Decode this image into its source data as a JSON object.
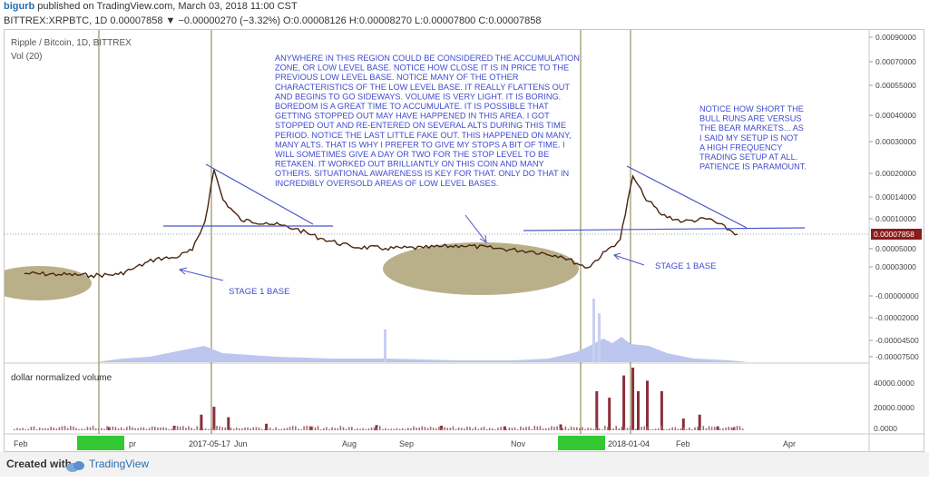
{
  "header": {
    "username": "bigurb",
    "published_text": "published on TradingView.com, March 03, 2018 11:00 CST",
    "ticker_line": "BITTREX:XRPBTC, 1D 0.00007858 ▼ −0.00000270 (−3.32%) O:0.00008126 H:0.00008270 L:0.00007800 C:0.00007858"
  },
  "chart_title": "Ripple / Bitcoin, 1D, BITTREX",
  "vol_label": "Vol (20)",
  "lower_pane_label": "dollar normalized volume",
  "annotations": {
    "accumulation": [
      "ANYWHERE IN THIS REGION COULD BE CONSIDERED THE ACCUMULATION",
      "ZONE, OR LOW LEVEL BASE.  NOTICE HOW CLOSE IT IS IN PRICE TO THE",
      "PREVIOUS LOW LEVEL BASE.  NOTICE MANY OF THE OTHER",
      "CHARACTERISTICS OF THE LOW LEVEL BASE.  IT REALLY FLATTENS OUT",
      "AND BEGINS TO GO SIDEWAYS.  VOLUME IS VERY LIGHT.  IT IS BORING.",
      "BOREDOM IS A GREAT TIME TO ACCUMULATE.  IT IS POSSIBLE THAT",
      "GETTING STOPPED OUT MAY HAVE HAPPENED IN THIS AREA.  I GOT",
      "STOPPED OUT AND RE-ENTERED ON SEVERAL ALTS DURING THIS TIME",
      "PERIOD.  NOTICE THE LAST LITTLE FAKE OUT.  THIS HAPPENED ON MANY,",
      "MANY ALTS.  THAT IS WHY I PREFER TO GIVE MY STOPS A BIT OF TIME.  I",
      "WILL SOMETIMES GIVE A DAY OR TWO FOR THE STOP LEVEL TO BE",
      "RETAKEN.  IT WORKED OUT BRILLIANTLY ON THIS COIN AND MANY",
      "OTHERS.  SITUATIONAL AWARENESS IS KEY FOR THAT.  ONLY DO THAT IN",
      "INCREDIBLY OVERSOLD AREAS OF LOW LEVEL BASES."
    ],
    "notice": [
      "NOTICE HOW SHORT THE",
      "BULL RUNS ARE VERSUS",
      "THE BEAR MARKETS...  AS",
      "I SAID MY SETUP IS NOT",
      "A HIGH FREQUENCY",
      "TRADING SETUP AT ALL.",
      "PATIENCE IS PARAMOUNT."
    ],
    "stage1_left": "STAGE 1 BASE",
    "stage1_right": "STAGE 1 BASE"
  },
  "price_axis": {
    "ticks": [
      "0.00090000",
      "0.00070000",
      "0.00055000",
      "0.00040000",
      "0.00030000",
      "0.00020000",
      "0.00014000",
      "0.00010000",
      "0.00005000",
      "0.00003000",
      "-0.00000000",
      "-0.00002000",
      "-0.00004500",
      "-0.00007500"
    ],
    "current_price": "0.00007858"
  },
  "volume_axis": {
    "ticks": [
      "40000.0000",
      "20000.0000",
      "0.0000"
    ]
  },
  "time_axis": {
    "labels": [
      "Feb",
      "pr",
      "Jun",
      "Aug",
      "Sep",
      "Nov",
      "Feb",
      "Apr"
    ],
    "highlight_labels": [
      "2017-05-17",
      "2018-01-04"
    ]
  },
  "colors": {
    "price_line": "#4a2410",
    "trendline": "#4c56c8",
    "ellipse": "#b9b08a",
    "volume_bars": "#8a2f3a",
    "vol_area": "#bcc6ee",
    "highlight": "#32c832"
  },
  "chart_data": {
    "type": "line",
    "title": "Ripple / Bitcoin, 1D, BITTREX",
    "x": [
      "2017-02-01",
      "2017-02-20",
      "2017-03-10",
      "2017-03-25",
      "2017-04-01",
      "2017-04-15",
      "2017-04-25",
      "2017-05-05",
      "2017-05-12",
      "2017-05-17",
      "2017-05-22",
      "2017-06-01",
      "2017-06-15",
      "2017-07-01",
      "2017-07-15",
      "2017-08-01",
      "2017-08-20",
      "2017-09-10",
      "2017-10-01",
      "2017-10-20",
      "2017-11-10",
      "2017-11-25",
      "2017-12-10",
      "2017-12-20",
      "2017-12-28",
      "2018-01-04",
      "2018-01-10",
      "2018-01-20",
      "2018-02-01",
      "2018-02-15",
      "2018-03-03"
    ],
    "series": [
      {
        "values": [
          2.6e-05,
          2.5e-05,
          2.4e-05,
          2.5e-05,
          3e-05,
          4.2e-05,
          4.3e-05,
          5.2e-05,
          0.0001,
          0.00022,
          0.00014,
          0.000102,
          9.8e-05,
          8.8e-05,
          7.2e-05,
          5.8e-05,
          5.5e-05,
          5.6e-05,
          6e-05,
          5.5e-05,
          5e-05,
          4.5e-05,
          3.2e-05,
          5e-05,
          7e-05,
          0.0002,
          0.00015,
          0.000112,
          0.0001,
          0.000105,
          7.858e-05
        ]
      }
    ],
    "volume": {
      "name": "dollar normalized volume",
      "x": [
        "2017-03-20",
        "2017-04-25",
        "2017-05-10",
        "2017-05-17",
        "2017-05-25",
        "2017-06-15",
        "2017-07-10",
        "2017-08-15",
        "2017-09-20",
        "2017-10-25",
        "2017-11-25",
        "2017-12-15",
        "2017-12-22",
        "2017-12-30",
        "2018-01-04",
        "2018-01-07",
        "2018-01-12",
        "2018-01-20",
        "2018-02-01",
        "2018-02-10",
        "2018-02-20",
        "2018-03-01"
      ],
      "values": [
        2500,
        3500,
        12000,
        18000,
        10000,
        5000,
        3000,
        4000,
        3500,
        3000,
        4500,
        30000,
        25000,
        42000,
        48000,
        30000,
        38000,
        30000,
        9000,
        12000,
        3000,
        2000
      ]
    },
    "ylim": [
      -7.5e-05,
      0.0009
    ],
    "xlabel": "",
    "ylabel": "",
    "grid": false,
    "legend": "none"
  }
}
